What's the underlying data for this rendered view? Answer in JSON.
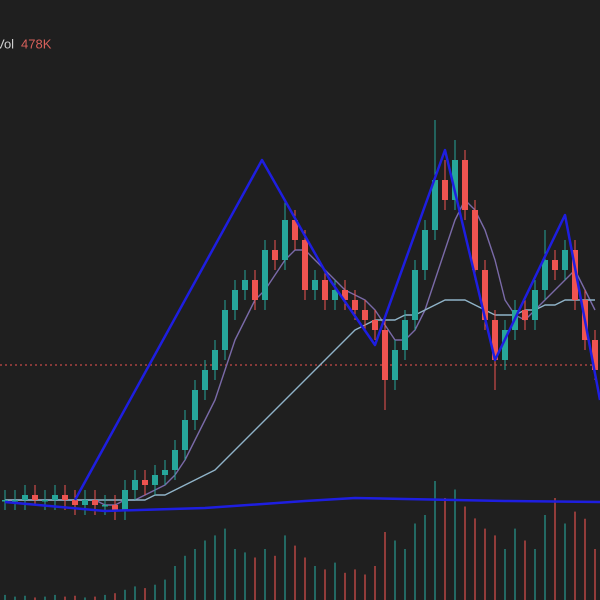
{
  "chart_data": {
    "type": "candlestick",
    "volume_label": "Vol",
    "volume_readout": "478K",
    "up_color": "#26a69a",
    "down_color": "#ef5350",
    "ylim": [
      0,
      100
    ],
    "volume_ylim": [
      0,
      1000
    ],
    "reference_line": 47,
    "open": [
      20,
      20,
      20,
      21,
      20,
      20,
      21,
      20,
      19,
      20,
      19,
      19,
      18,
      22,
      24,
      23,
      25,
      26,
      30,
      36,
      42,
      46,
      50,
      58,
      62,
      64,
      60,
      70,
      68,
      76,
      72,
      62,
      64,
      60,
      62,
      60,
      58,
      56,
      54,
      44,
      50,
      56,
      66,
      74,
      84,
      80,
      88,
      78,
      66,
      56,
      48,
      54,
      58,
      56,
      62,
      68,
      66,
      70,
      60,
      52
    ],
    "high": [
      22,
      22,
      23,
      23,
      22,
      23,
      23,
      22,
      22,
      22,
      21,
      21,
      24,
      26,
      26,
      27,
      28,
      32,
      38,
      44,
      48,
      52,
      60,
      64,
      66,
      66,
      72,
      72,
      80,
      78,
      74,
      66,
      66,
      64,
      64,
      62,
      60,
      58,
      56,
      52,
      58,
      68,
      76,
      96,
      88,
      92,
      90,
      80,
      68,
      58,
      56,
      60,
      60,
      64,
      74,
      70,
      72,
      72,
      62,
      54
    ],
    "low": [
      18,
      18,
      18,
      19,
      18,
      18,
      18,
      17,
      17,
      17,
      17,
      16,
      16,
      20,
      21,
      21,
      23,
      24,
      28,
      34,
      40,
      44,
      48,
      56,
      60,
      58,
      58,
      66,
      66,
      70,
      60,
      60,
      58,
      58,
      58,
      56,
      54,
      52,
      38,
      42,
      48,
      54,
      64,
      72,
      78,
      78,
      76,
      64,
      54,
      42,
      46,
      52,
      54,
      54,
      60,
      64,
      64,
      58,
      50,
      44
    ],
    "close": [
      20,
      20,
      21,
      20,
      20,
      21,
      20,
      19,
      20,
      19,
      19,
      18,
      22,
      24,
      23,
      25,
      26,
      30,
      36,
      42,
      46,
      50,
      58,
      62,
      64,
      60,
      70,
      68,
      76,
      72,
      62,
      64,
      60,
      62,
      60,
      58,
      56,
      54,
      44,
      50,
      56,
      66,
      74,
      84,
      80,
      88,
      78,
      66,
      56,
      48,
      54,
      58,
      56,
      62,
      68,
      66,
      70,
      60,
      52,
      46
    ],
    "volume": [
      30,
      20,
      25,
      15,
      20,
      30,
      20,
      25,
      15,
      20,
      30,
      40,
      60,
      80,
      70,
      90,
      120,
      200,
      260,
      300,
      350,
      380,
      420,
      300,
      280,
      250,
      300,
      260,
      380,
      320,
      250,
      200,
      180,
      220,
      160,
      180,
      150,
      200,
      400,
      350,
      300,
      450,
      500,
      700,
      600,
      650,
      550,
      480,
      420,
      380,
      300,
      420,
      350,
      300,
      500,
      600,
      450,
      520,
      478,
      300
    ],
    "series": [
      {
        "color": "#7a6aa8",
        "values": [
          20,
          20,
          20,
          20,
          20,
          20,
          20,
          20,
          20,
          20,
          19,
          19,
          20,
          20,
          21,
          22,
          23,
          25,
          28,
          32,
          36,
          40,
          46,
          52,
          56,
          60,
          62,
          65,
          68,
          70,
          70,
          68,
          66,
          64,
          62,
          61,
          60,
          58,
          55,
          52,
          52,
          54,
          58,
          64,
          70,
          76,
          80,
          78,
          74,
          68,
          60,
          57,
          56,
          58,
          60,
          62,
          64,
          66,
          62,
          58
        ]
      },
      {
        "color": "#8fb3c8",
        "values": [
          20,
          20,
          20,
          20,
          20,
          20,
          20,
          20,
          20,
          20,
          20,
          20,
          20,
          20,
          20,
          21,
          21,
          22,
          23,
          24,
          25,
          26,
          28,
          30,
          32,
          34,
          36,
          38,
          40,
          42,
          44,
          46,
          48,
          50,
          52,
          54,
          55,
          56,
          56,
          56,
          57,
          57,
          58,
          59,
          60,
          60,
          60,
          59,
          58,
          57,
          57,
          57,
          58,
          58,
          59,
          59,
          60,
          60,
          60,
          60
        ]
      }
    ],
    "pattern": {
      "color": "#1e1ee0",
      "x": [
        7,
        25.7,
        32.5,
        37,
        44,
        49,
        56,
        59.5
      ],
      "values": [
        20,
        88,
        64,
        51,
        90,
        48,
        77,
        40
      ]
    },
    "baseline": {
      "color": "#1e1ee0",
      "x": [
        0,
        10,
        20,
        30,
        35,
        40,
        50,
        59.5
      ],
      "values": [
        19.6,
        17.8,
        18.4,
        19.8,
        20.4,
        20.2,
        19.8,
        19.6
      ]
    }
  }
}
